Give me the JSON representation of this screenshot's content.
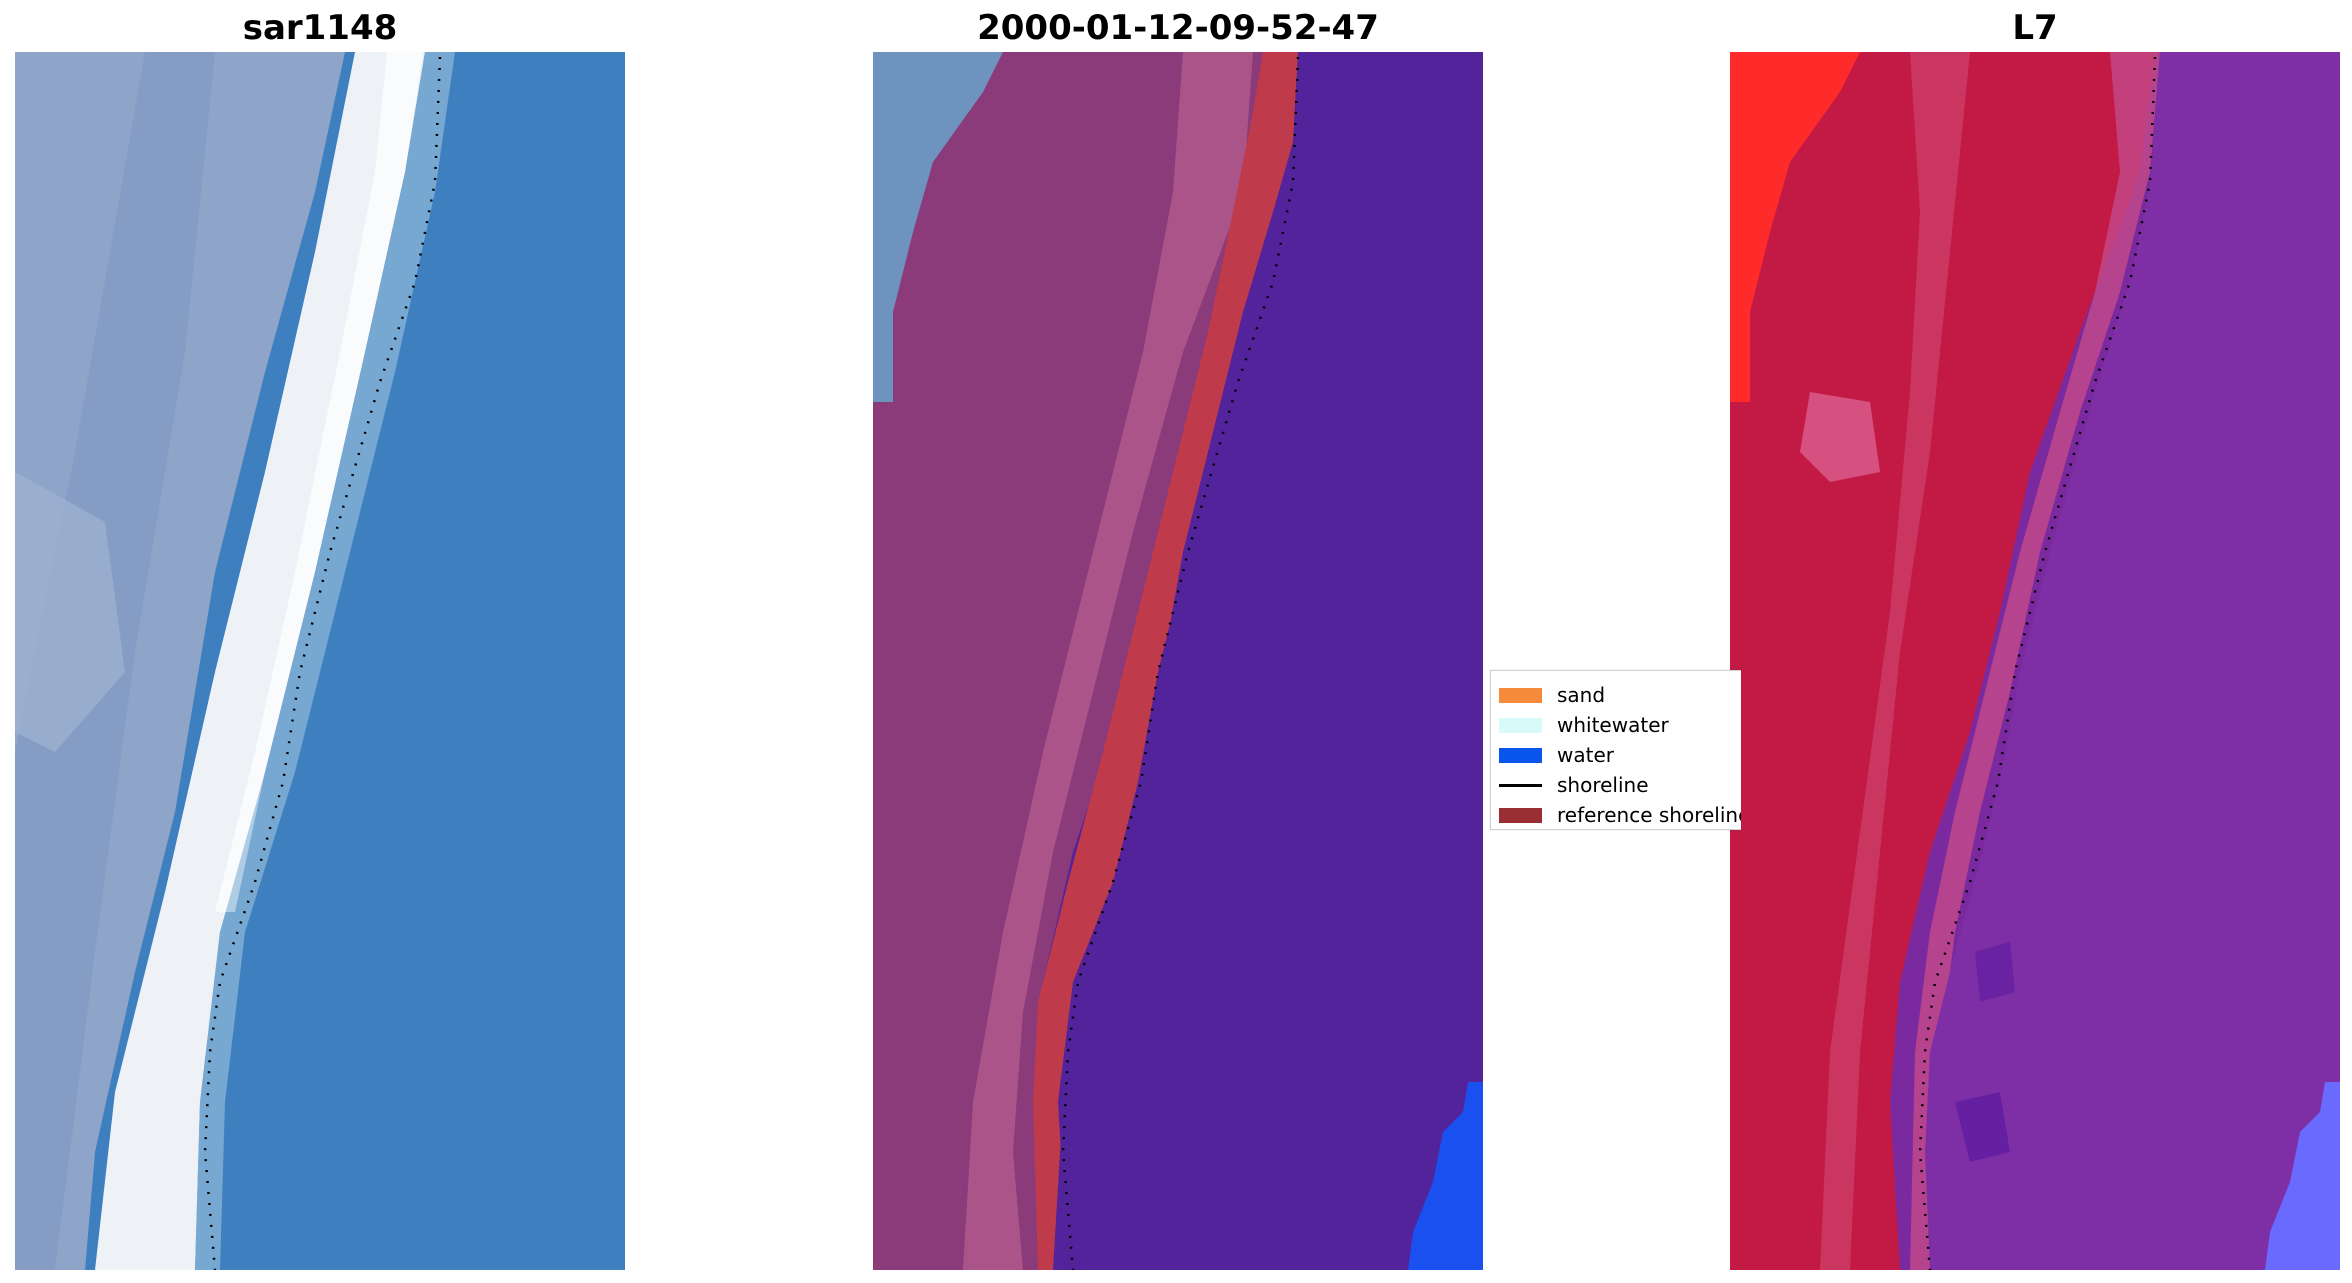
{
  "panels": [
    {
      "title": "sar1148"
    },
    {
      "title": "2000-01-12-09-52-47"
    },
    {
      "title": "L7"
    }
  ],
  "legend": {
    "items": [
      {
        "label": "sand",
        "color": "#f58a3a",
        "kind": "patch"
      },
      {
        "label": "whitewater",
        "color": "#d7fbfb",
        "kind": "patch"
      },
      {
        "label": "water",
        "color": "#0a55ee",
        "kind": "patch"
      },
      {
        "label": "shoreline",
        "color": "#000000",
        "kind": "line"
      },
      {
        "label": "reference shoreline",
        "color": "#9a2e35",
        "kind": "patch"
      }
    ]
  },
  "colors": {
    "ocean_blue": "#3a7fbf",
    "beach_white": "#eef2f6",
    "land_lavender": "#8ea3c8",
    "classified_water": "#52239a",
    "classified_land": "#8b3a78",
    "reference_band": "#bf3a4a",
    "false_color_land": "#c21a45",
    "false_color_water": "#7a2a9e",
    "bright_red": "#ff2a2a"
  }
}
